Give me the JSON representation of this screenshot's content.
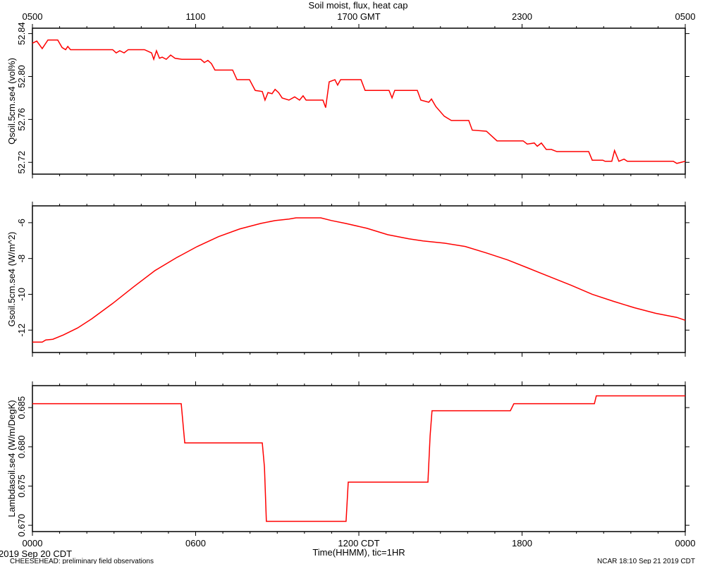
{
  "chart_data": [
    {
      "type": "line",
      "title": "Soil moist, flux, heat cap",
      "ylabel": "Qsoil.5cm.se4 (vol%)",
      "color": "#ff0000",
      "xlim": [
        0,
        24
      ],
      "x2ticks": [
        {
          "value": 0,
          "label": "0500"
        },
        {
          "value": 6,
          "label": "1100"
        },
        {
          "value": 12,
          "label": "1700 GMT"
        },
        {
          "value": 18,
          "label": "2300"
        },
        {
          "value": 24,
          "label": "0500"
        }
      ],
      "xminorticks": [
        1,
        2,
        3,
        4,
        5,
        7,
        8,
        9,
        10,
        11,
        13,
        14,
        15,
        16,
        17,
        19,
        20,
        21,
        22,
        23
      ],
      "ylim": [
        52.709,
        52.845
      ],
      "yticks": [
        52.72,
        52.76,
        {
          "value": 52.8,
          "label": "52.80"
        },
        52.84
      ],
      "x": [
        0.0,
        0.16,
        0.36,
        0.57,
        0.93,
        1.09,
        1.22,
        1.3,
        1.4,
        2.95,
        3.08,
        3.21,
        3.37,
        3.52,
        4.12,
        4.38,
        4.46,
        4.56,
        4.67,
        4.77,
        4.92,
        5.08,
        5.24,
        5.49,
        6.19,
        6.32,
        6.45,
        6.58,
        6.71,
        7.36,
        7.52,
        7.98,
        8.19,
        8.45,
        8.55,
        8.66,
        8.81,
        8.92,
        9.05,
        9.18,
        9.43,
        9.64,
        9.82,
        9.95,
        10.06,
        10.68,
        10.78,
        10.91,
        11.12,
        11.22,
        11.33,
        12.08,
        12.23,
        13.11,
        13.22,
        13.32,
        14.15,
        14.28,
        14.57,
        14.67,
        14.83,
        15.14,
        15.4,
        16.04,
        16.17,
        16.69,
        16.82,
        17.08,
        18.04,
        18.19,
        18.45,
        18.56,
        18.71,
        18.89,
        19.08,
        19.28,
        20.45,
        20.58,
        20.97,
        21.05,
        21.3,
        21.4,
        21.56,
        21.75,
        21.87,
        23.56,
        23.69,
        24.0
      ],
      "values": [
        52.831,
        52.833,
        52.826,
        52.834,
        52.834,
        52.827,
        52.825,
        52.828,
        52.825,
        52.825,
        52.822,
        52.824,
        52.822,
        52.825,
        52.825,
        52.822,
        52.816,
        52.824,
        52.817,
        52.818,
        52.816,
        52.82,
        52.817,
        52.816,
        52.816,
        52.813,
        52.815,
        52.812,
        52.806,
        52.806,
        52.797,
        52.797,
        52.787,
        52.786,
        52.778,
        52.785,
        52.784,
        52.788,
        52.785,
        52.78,
        52.778,
        52.781,
        52.778,
        52.782,
        52.778,
        52.778,
        52.771,
        52.795,
        52.797,
        52.792,
        52.797,
        52.797,
        52.787,
        52.787,
        52.78,
        52.787,
        52.787,
        52.778,
        52.776,
        52.779,
        52.772,
        52.763,
        52.759,
        52.759,
        52.75,
        52.749,
        52.746,
        52.74,
        52.74,
        52.737,
        52.738,
        52.735,
        52.738,
        52.732,
        52.732,
        52.73,
        52.73,
        52.722,
        52.722,
        52.721,
        52.721,
        52.731,
        52.721,
        52.723,
        52.721,
        52.721,
        52.719,
        52.721
      ]
    },
    {
      "type": "line",
      "ylabel": "Gsoil.5cm.se4 (W/m^2)",
      "color": "#ff0000",
      "xlim": [
        0,
        24
      ],
      "ylim": [
        -13.25,
        -5.06
      ],
      "yticks": [
        -12,
        -10,
        -8,
        -6
      ],
      "x": [
        0,
        0.36,
        0.49,
        0.75,
        1.14,
        1.66,
        2.18,
        2.95,
        3.73,
        4.51,
        5.29,
        6.06,
        6.84,
        7.62,
        8.4,
        8.92,
        9.43,
        9.69,
        10.6,
        10.99,
        11.51,
        12.29,
        13.06,
        13.84,
        14.36,
        15.14,
        15.91,
        16.69,
        17.47,
        18.25,
        19.02,
        19.8,
        20.58,
        21.36,
        22.13,
        22.91,
        23.69,
        24.0
      ],
      "values": [
        -12.67,
        -12.67,
        -12.55,
        -12.51,
        -12.27,
        -11.88,
        -11.37,
        -10.51,
        -9.57,
        -8.67,
        -7.96,
        -7.33,
        -6.78,
        -6.35,
        -6.04,
        -5.88,
        -5.8,
        -5.73,
        -5.73,
        -5.88,
        -6.04,
        -6.31,
        -6.67,
        -6.9,
        -7.02,
        -7.14,
        -7.33,
        -7.69,
        -8.08,
        -8.55,
        -9.02,
        -9.49,
        -10.0,
        -10.39,
        -10.75,
        -11.06,
        -11.29,
        -11.45
      ]
    },
    {
      "type": "line",
      "ylabel": "Lambdasoil.se4 (W/m/DegK)",
      "xlabel": "Time(HHMM), tic=1HR",
      "color": "#ff0000",
      "xlim": [
        0,
        24
      ],
      "xticks": [
        {
          "value": 0,
          "label": "0000"
        },
        {
          "value": 6,
          "label": "0600"
        },
        {
          "value": 12,
          "label": "1200 CDT"
        },
        {
          "value": 18,
          "label": "1800"
        },
        {
          "value": 24,
          "label": "0000"
        }
      ],
      "ylim": [
        0.6692,
        0.6878
      ],
      "yticks": [
        {
          "value": 0.67,
          "label": "0.670"
        },
        0.675,
        {
          "value": 0.68,
          "label": "0.680"
        },
        0.685
      ],
      "x": [
        0,
        5.47,
        5.55,
        5.6,
        8.45,
        8.53,
        8.6,
        11.53,
        11.61,
        14.54,
        14.62,
        14.69,
        17.57,
        17.7,
        20.66,
        20.73,
        24
      ],
      "values": [
        0.6855,
        0.6855,
        0.6824,
        0.6805,
        0.6805,
        0.6774,
        0.6705,
        0.6705,
        0.6755,
        0.6755,
        0.6814,
        0.6846,
        0.6846,
        0.6855,
        0.6855,
        0.6865,
        0.6865
      ]
    }
  ],
  "footer": {
    "date": "2019 Sep 20 CDT",
    "project": "CHEESEHEAD: preliminary field observations",
    "stamp": "NCAR 18:10 Sep 21 2019 CDT"
  }
}
